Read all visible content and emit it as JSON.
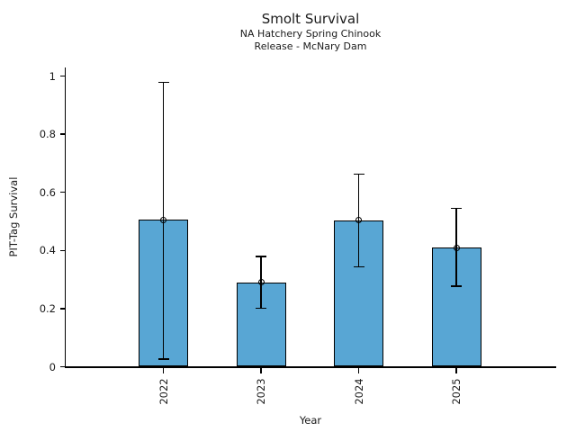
{
  "chart_data": {
    "type": "bar",
    "title": "Smolt Survival",
    "subtitle_line1": "NA Hatchery Spring Chinook",
    "subtitle_line2": "Release - McNary Dam",
    "xlabel": "Year",
    "ylabel": "PIT-Tag Survival",
    "categories": [
      "2022",
      "2023",
      "2024",
      "2025"
    ],
    "values": [
      0.505,
      0.291,
      0.504,
      0.41
    ],
    "error_low": [
      0.026,
      0.201,
      0.344,
      0.277
    ],
    "error_high": [
      0.978,
      0.38,
      0.662,
      0.545
    ],
    "ylim": [
      0,
      1
    ],
    "y_ticks": [
      0,
      0.2,
      0.4,
      0.6,
      0.8,
      1
    ],
    "y_tick_labels": [
      "0",
      "0.2",
      "0.4",
      "0.6",
      "0.8",
      "1"
    ],
    "marker": "open-circle",
    "legend": "none",
    "grid": "off",
    "colors": {
      "bar_fill": "#58A6D4",
      "bar_edge": "#000000",
      "axis": "#000000",
      "text": "#1a1a1a"
    }
  }
}
